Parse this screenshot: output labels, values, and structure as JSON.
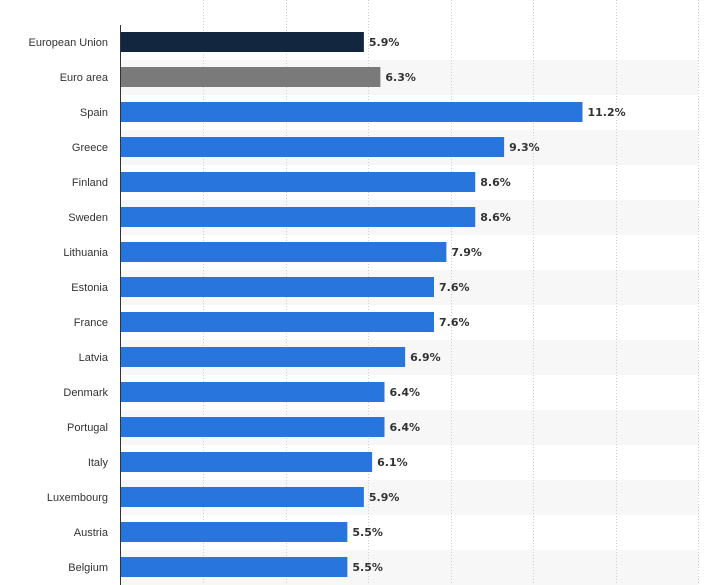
{
  "chart_data": {
    "type": "bar",
    "orientation": "horizontal",
    "categories": [
      "European Union",
      "Euro area",
      "Spain",
      "Greece",
      "Finland",
      "Sweden",
      "Lithuania",
      "Estonia",
      "France",
      "Latvia",
      "Denmark",
      "Portugal",
      "Italy",
      "Luxembourg",
      "Austria",
      "Belgium"
    ],
    "values": [
      5.9,
      6.3,
      11.2,
      9.3,
      8.6,
      8.6,
      7.9,
      7.6,
      7.6,
      6.9,
      6.4,
      6.4,
      6.1,
      5.9,
      5.5,
      5.5
    ],
    "value_labels": [
      "5.9%",
      "6.3%",
      "11.2%",
      "9.3%",
      "8.6%",
      "8.6%",
      "7.9%",
      "7.6%",
      "7.6%",
      "6.9%",
      "6.4%",
      "6.4%",
      "6.1%",
      "5.9%",
      "5.5%",
      "5.5%"
    ],
    "bar_colors": [
      "#12263f",
      "#7a7a7a",
      "#2876dd",
      "#2876dd",
      "#2876dd",
      "#2876dd",
      "#2876dd",
      "#2876dd",
      "#2876dd",
      "#2876dd",
      "#2876dd",
      "#2876dd",
      "#2876dd",
      "#2876dd",
      "#2876dd",
      "#2876dd"
    ],
    "xlim": [
      0,
      14
    ],
    "x_gridline_step": 2,
    "grid": true,
    "alternating_row_shading": "#f7f7f7",
    "title": "",
    "xlabel": "",
    "ylabel": ""
  }
}
